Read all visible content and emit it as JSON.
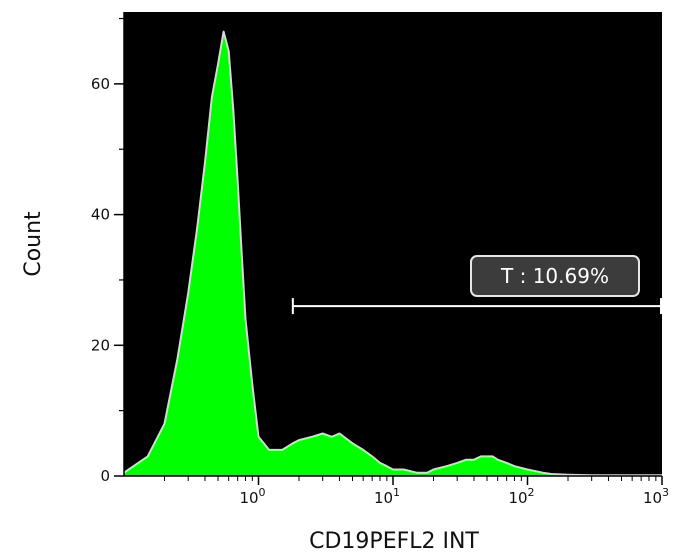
{
  "chart_data": {
    "type": "area",
    "title": "",
    "xlabel": "CD19PEFL2 INT",
    "ylabel": "Count",
    "x_scale": "log",
    "xlim": [
      0.1,
      1000
    ],
    "ylim": [
      0,
      71
    ],
    "x_ticks": [
      {
        "value": 1,
        "base": "10",
        "exp": "0"
      },
      {
        "value": 10,
        "base": "10",
        "exp": "1"
      },
      {
        "value": 100,
        "base": "10",
        "exp": "2"
      },
      {
        "value": 1000,
        "base": "10",
        "exp": "3"
      }
    ],
    "y_ticks": [
      0,
      20,
      40,
      60
    ],
    "background_color": "#000000",
    "fill_color": "#00ff00",
    "outline_color": "#d8d8d8",
    "series": [
      {
        "x": [
          0.1,
          0.15,
          0.2,
          0.25,
          0.3,
          0.35,
          0.4,
          0.45,
          0.5,
          0.55,
          0.6,
          0.65,
          0.7,
          0.75,
          0.8,
          0.9,
          1.0,
          1.2,
          1.5,
          1.8,
          2.0,
          2.5,
          3.0,
          3.5,
          4.0,
          5.0,
          6.0,
          7.0,
          8.0,
          9.0,
          10,
          12,
          15,
          18,
          20,
          25,
          30,
          35,
          40,
          45,
          50,
          55,
          60,
          70,
          80,
          100,
          130,
          150,
          200,
          300,
          500,
          700,
          1000
        ],
        "y": [
          0.5,
          3,
          8,
          18,
          28,
          38,
          48,
          58,
          63,
          68,
          65,
          56,
          45,
          34,
          24,
          14,
          6,
          4,
          4,
          5,
          5.5,
          6,
          6.5,
          6,
          6.5,
          5,
          4,
          3,
          2,
          1.5,
          1,
          1,
          0.5,
          0.5,
          1,
          1.5,
          2,
          2.5,
          2.5,
          3,
          3,
          3,
          2.5,
          2,
          1.5,
          1,
          0.5,
          0.3,
          0.2,
          0.1,
          0.1,
          0.1,
          0.1
        ]
      }
    ],
    "gate": {
      "label": "T : 10.69%",
      "x_start": 1.8,
      "x_end": 1000,
      "y": 26
    }
  }
}
